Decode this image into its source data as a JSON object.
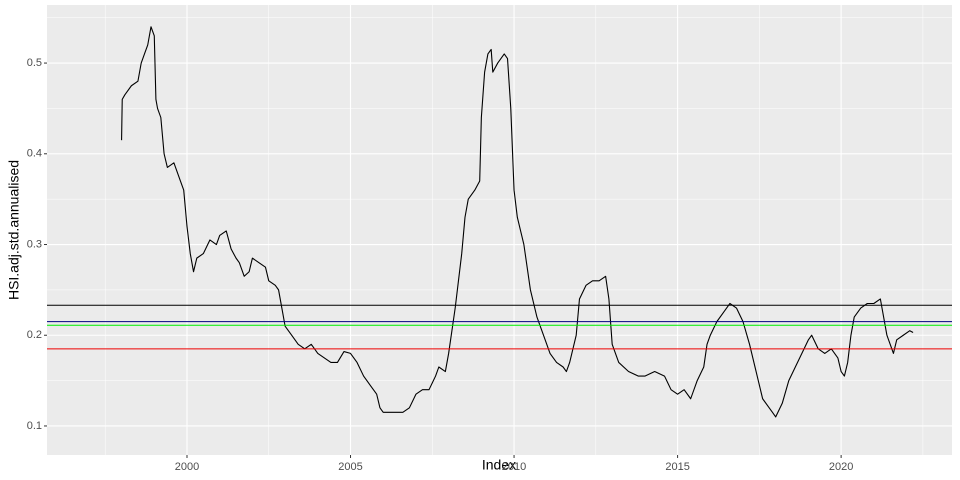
{
  "chart_data": {
    "type": "line",
    "x_label": "Index",
    "y_label": "HSI.adj.std.annualised",
    "color": "#000000",
    "x": [
      1998.0,
      1998.02,
      1998.1,
      1998.3,
      1998.5,
      1998.6,
      1998.7,
      1998.8,
      1998.9,
      1999.0,
      1999.05,
      1999.1,
      1999.2,
      1999.3,
      1999.4,
      1999.6,
      1999.8,
      1999.9,
      2000.0,
      2000.1,
      2000.2,
      2000.3,
      2000.5,
      2000.7,
      2000.9,
      2001.0,
      2001.2,
      2001.35,
      2001.5,
      2001.6,
      2001.75,
      2001.9,
      2002.0,
      2002.2,
      2002.4,
      2002.5,
      2002.7,
      2002.8,
      2002.9,
      2003.0,
      2003.2,
      2003.4,
      2003.6,
      2003.8,
      2004.0,
      2004.2,
      2004.4,
      2004.6,
      2004.8,
      2005.0,
      2005.2,
      2005.4,
      2005.6,
      2005.8,
      2005.9,
      2006.0,
      2006.3,
      2006.6,
      2006.8,
      2007.0,
      2007.2,
      2007.4,
      2007.6,
      2007.7,
      2007.9,
      2008.0,
      2008.2,
      2008.4,
      2008.5,
      2008.6,
      2008.8,
      2008.95,
      2009.0,
      2009.1,
      2009.2,
      2009.3,
      2009.35,
      2009.5,
      2009.7,
      2009.8,
      2009.9,
      2010.0,
      2010.1,
      2010.3,
      2010.5,
      2010.7,
      2010.9,
      2011.1,
      2011.3,
      2011.5,
      2011.6,
      2011.7,
      2011.9,
      2012.0,
      2012.2,
      2012.4,
      2012.6,
      2012.8,
      2012.9,
      2013.0,
      2013.2,
      2013.5,
      2013.8,
      2014.0,
      2014.3,
      2014.6,
      2014.8,
      2015.0,
      2015.2,
      2015.4,
      2015.6,
      2015.8,
      2015.9,
      2016.0,
      2016.2,
      2016.4,
      2016.6,
      2016.8,
      2017.0,
      2017.2,
      2017.4,
      2017.6,
      2017.8,
      2017.9,
      2018.0,
      2018.2,
      2018.4,
      2018.6,
      2018.8,
      2019.0,
      2019.1,
      2019.3,
      2019.5,
      2019.7,
      2019.9,
      2020.0,
      2020.1,
      2020.2,
      2020.3,
      2020.4,
      2020.6,
      2020.8,
      2021.0,
      2021.2,
      2021.3,
      2021.4,
      2021.5,
      2021.6,
      2021.7,
      2021.9,
      2022.1,
      2022.2
    ],
    "values": [
      0.415,
      0.46,
      0.465,
      0.475,
      0.48,
      0.5,
      0.51,
      0.52,
      0.54,
      0.53,
      0.46,
      0.45,
      0.44,
      0.4,
      0.385,
      0.39,
      0.37,
      0.36,
      0.32,
      0.29,
      0.27,
      0.285,
      0.29,
      0.305,
      0.3,
      0.31,
      0.315,
      0.295,
      0.285,
      0.28,
      0.265,
      0.27,
      0.285,
      0.28,
      0.275,
      0.26,
      0.255,
      0.25,
      0.23,
      0.21,
      0.2,
      0.19,
      0.185,
      0.19,
      0.18,
      0.175,
      0.17,
      0.17,
      0.182,
      0.18,
      0.17,
      0.155,
      0.145,
      0.135,
      0.12,
      0.115,
      0.115,
      0.115,
      0.12,
      0.135,
      0.14,
      0.14,
      0.155,
      0.165,
      0.16,
      0.18,
      0.23,
      0.29,
      0.33,
      0.35,
      0.36,
      0.37,
      0.44,
      0.49,
      0.51,
      0.515,
      0.49,
      0.5,
      0.51,
      0.505,
      0.45,
      0.36,
      0.33,
      0.3,
      0.25,
      0.22,
      0.2,
      0.18,
      0.17,
      0.165,
      0.16,
      0.17,
      0.2,
      0.24,
      0.255,
      0.26,
      0.26,
      0.265,
      0.24,
      0.19,
      0.17,
      0.16,
      0.155,
      0.155,
      0.16,
      0.155,
      0.14,
      0.135,
      0.14,
      0.13,
      0.15,
      0.165,
      0.19,
      0.2,
      0.215,
      0.225,
      0.235,
      0.23,
      0.215,
      0.19,
      0.16,
      0.13,
      0.12,
      0.115,
      0.11,
      0.125,
      0.15,
      0.165,
      0.18,
      0.195,
      0.2,
      0.185,
      0.18,
      0.185,
      0.175,
      0.16,
      0.155,
      0.17,
      0.2,
      0.22,
      0.23,
      0.235,
      0.235,
      0.24,
      0.22,
      0.2,
      0.19,
      0.18,
      0.195,
      0.2,
      0.205,
      0.203
    ],
    "hlines": [
      {
        "value": 0.233,
        "color": "#000000"
      },
      {
        "value": 0.215,
        "color": "#000080"
      },
      {
        "value": 0.211,
        "color": "#00ee00"
      },
      {
        "value": 0.185,
        "color": "#ee0000"
      }
    ],
    "xlim": [
      1995.72,
      2023.39
    ],
    "xticks": [
      2000,
      2005,
      2010,
      2015,
      2020
    ],
    "ylim": [
      0.068,
      0.564
    ],
    "yticks": [
      0.1,
      0.2,
      0.3,
      0.4,
      0.5
    ],
    "grid": true
  }
}
